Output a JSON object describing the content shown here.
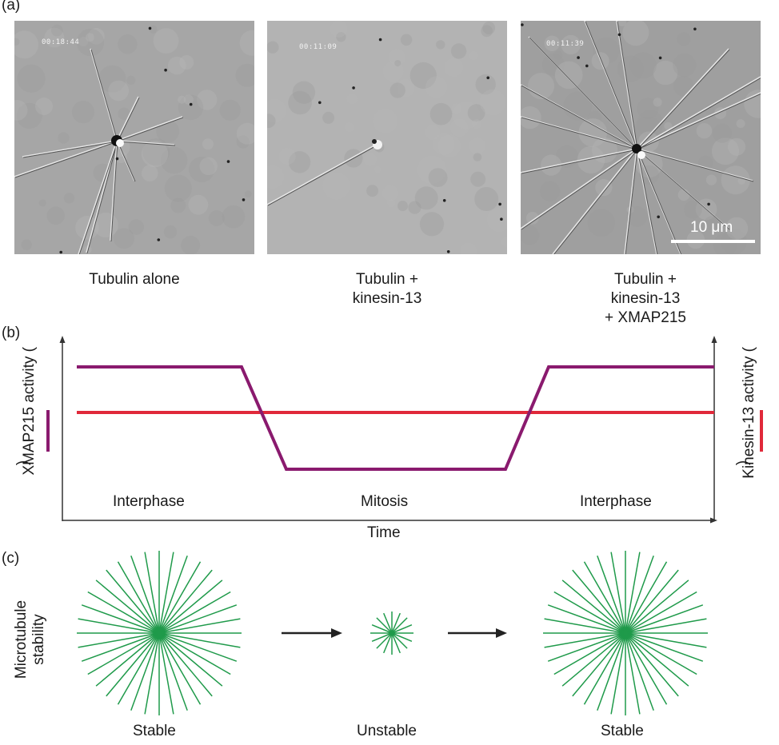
{
  "panel_a": {
    "label": "(a)",
    "images": [
      {
        "timestamp": "00:18:44",
        "caption": "Tubulin alone"
      },
      {
        "timestamp": "00:11:09",
        "caption": "Tubulin +\nkinesin-13"
      },
      {
        "timestamp": "00:11:39",
        "caption": "Tubulin +\nkinesin-13\n+ XMAP215"
      }
    ],
    "scale_bar_label": "10 μm"
  },
  "panel_b": {
    "label": "(b)",
    "left_axis_label": "XMAP215 activity (",
    "left_axis_label_close": ")",
    "right_axis_label": "Kinesin-13 activity (",
    "right_axis_label_close": ")",
    "x_axis_label": "Time",
    "phases": [
      "Interphase",
      "Mitosis",
      "Interphase"
    ],
    "colors": {
      "xmap215": "#8a1a6e",
      "kinesin13": "#e0293a"
    },
    "xmap215_levels": {
      "interphase": "high",
      "mitosis": "low"
    },
    "kinesin13_level": "constant"
  },
  "panel_c": {
    "label": "(c)",
    "axis_label_line1": "Microtubule",
    "axis_label_line2": "stability",
    "states": [
      "Stable",
      "Unstable",
      "Stable"
    ],
    "aster_color": "#1f9a4a"
  }
}
